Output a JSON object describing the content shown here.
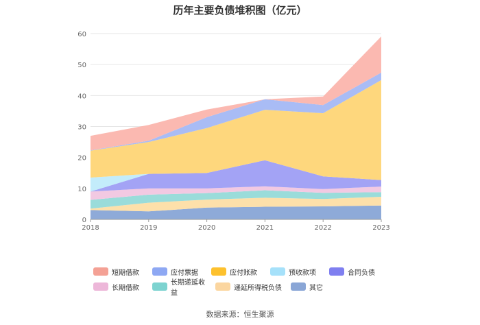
{
  "title": "历年主要负债堆积图（亿元）",
  "source": "数据来源：恒生聚源",
  "chart_data": {
    "type": "area",
    "stacked": true,
    "title": "历年主要负债堆积图（亿元）",
    "xlabel": "",
    "ylabel": "",
    "categories": [
      "2018",
      "2019",
      "2020",
      "2021",
      "2022",
      "2023"
    ],
    "ylim": [
      0,
      60
    ],
    "yticks": [
      0,
      10,
      20,
      30,
      40,
      50,
      60
    ],
    "grid": true,
    "legend_position": "bottom",
    "series": [
      {
        "name": "其它",
        "color": "#8eaad8",
        "values": [
          3.0,
          2.6,
          3.8,
          4.1,
          4.2,
          4.5
        ]
      },
      {
        "name": "递延所得税负债",
        "color": "#fde0aa",
        "values": [
          0.5,
          2.8,
          2.6,
          2.9,
          2.4,
          2.8
        ]
      },
      {
        "name": "长期递延收益",
        "color": "#9adcda",
        "values": [
          2.8,
          2.6,
          2.1,
          2.4,
          2.0,
          1.5
        ]
      },
      {
        "name": "长期借款",
        "color": "#f2c9e2",
        "values": [
          2.7,
          2.0,
          1.5,
          1.3,
          1.2,
          1.8
        ]
      },
      {
        "name": "合同负债",
        "color": "#a3a3f5",
        "values": [
          0.0,
          4.7,
          5.0,
          8.4,
          4.1,
          2.1
        ]
      },
      {
        "name": "预收款项",
        "color": "#c3ecfb",
        "values": [
          4.5,
          0.0,
          0.0,
          0.0,
          0.0,
          0.0
        ]
      },
      {
        "name": "应付账款",
        "color": "#fed77d",
        "values": [
          8.7,
          10.3,
          14.5,
          16.3,
          20.4,
          32.3
        ]
      },
      {
        "name": "应付票据",
        "color": "#a9bcf5",
        "values": [
          0.1,
          0.4,
          3.5,
          3.4,
          2.6,
          2.4
        ]
      },
      {
        "name": "短期借款",
        "color": "#fbb9b1",
        "values": [
          4.7,
          5.1,
          2.5,
          0.0,
          2.8,
          11.7
        ]
      }
    ],
    "legend_order": [
      "短期借款",
      "应付票据",
      "应付账款",
      "预收款项",
      "合同负债",
      "长期借款",
      "长期递延收益",
      "递延所得税负债",
      "其它"
    ],
    "legend_colors": {
      "短期借款": "#f4a195",
      "应付票据": "#8ea8f3",
      "应付账款": "#fdc12e",
      "预收款项": "#a6e1fa",
      "合同负债": "#7f7ff0",
      "长期借款": "#edb7d9",
      "长期递延收益": "#7dd3d0",
      "递延所得税负债": "#fbd6a0",
      "其它": "#8aa6d6"
    }
  }
}
